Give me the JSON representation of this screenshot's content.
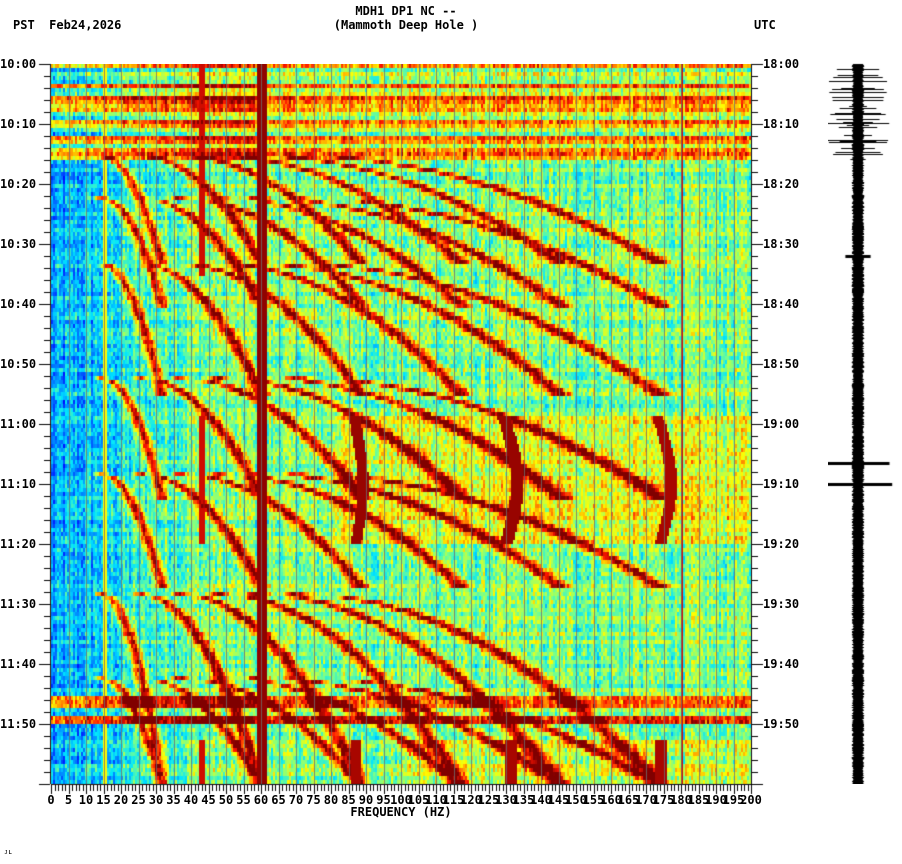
{
  "header": {
    "station_line": "MDH1 DP1 NC --",
    "site_line": "(Mammoth Deep Hole )",
    "left_timezone": "PST",
    "date": "Feb24,2026",
    "left_label": "PST  Feb24,2026",
    "right_timezone": "UTC"
  },
  "footer": {
    "mark": "ᴊʟ"
  },
  "chart_data": {
    "type": "heatmap",
    "title": "MDH1 DP1 NC -- (Mammoth Deep Hole )",
    "xlabel": "FREQUENCY (HZ)",
    "ylabel_left": "PST",
    "ylabel_right": "UTC",
    "xlim": [
      0,
      200
    ],
    "x_ticks": [
      "0",
      "5",
      "10",
      "15",
      "20",
      "25",
      "30",
      "35",
      "40",
      "45",
      "50",
      "55",
      "60",
      "65",
      "70",
      "75",
      "80",
      "85",
      "90",
      "95",
      "100",
      "105",
      "110",
      "115",
      "120",
      "125",
      "130",
      "135",
      "140",
      "145",
      "150",
      "155",
      "160",
      "165",
      "170",
      "175",
      "180",
      "185",
      "190",
      "195",
      "200"
    ],
    "y_ticks_pst": [
      "10:00",
      "10:10",
      "10:20",
      "10:30",
      "10:40",
      "10:50",
      "11:00",
      "11:10",
      "11:20",
      "11:30",
      "11:40",
      "11:50"
    ],
    "y_ticks_utc": [
      "18:00",
      "18:10",
      "18:20",
      "18:30",
      "18:40",
      "18:50",
      "19:00",
      "19:10",
      "19:20",
      "19:30",
      "19:40",
      "19:50"
    ],
    "time_range_minutes": 120,
    "colormap": [
      "#0000ff",
      "#0080ff",
      "#00ffff",
      "#80ff80",
      "#ffff00",
      "#ff8000",
      "#ff0000",
      "#800000"
    ],
    "persistent_lines_hz": [
      15,
      60,
      180
    ],
    "intermittent_lines_hz": [
      43,
      87,
      130,
      174
    ],
    "broadband_events_pst": [
      "10:00-10:16",
      "11:06",
      "11:09"
    ],
    "gliding_tones": "Repeated upward-sweeping harmonic arcs (~every 10-20 min), fundamental rising from ~20 Hz to ~45 Hz with harmonics to ~140 Hz",
    "background_level": {
      "low_freq_0_40hz": "blue",
      "mid_freq": "cyan/green",
      "high_freq_after_11:00": "yellow-green"
    }
  }
}
